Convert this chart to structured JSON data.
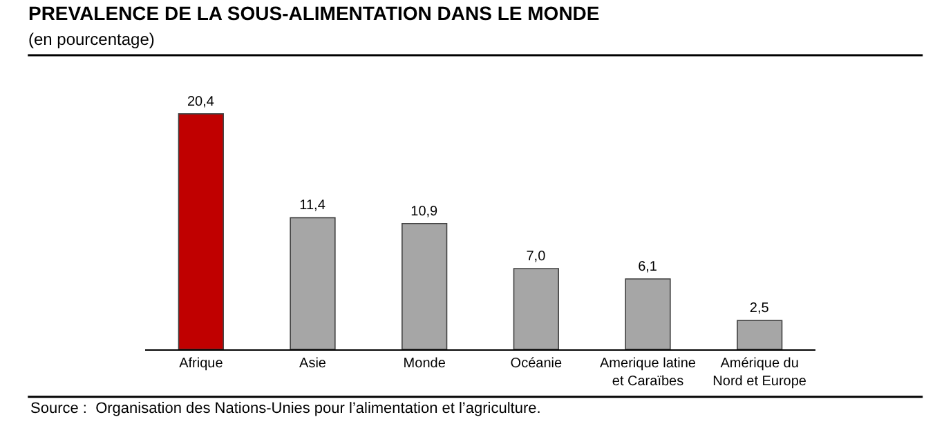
{
  "chart_data": {
    "type": "bar",
    "title": "PREVALENCE DE LA SOUS-ALIMENTATION DANS LE MONDE",
    "subtitle": "(en pourcentage)",
    "categories": [
      "Afrique",
      "Asie",
      "Monde",
      "Océanie",
      "Amerique latine\net Caraïbes",
      "Amérique du\nNord et Europe"
    ],
    "values": [
      20.4,
      11.4,
      10.9,
      7.0,
      6.1,
      2.5
    ],
    "value_labels": [
      "20,4",
      "11,4",
      "10,9",
      "7,0",
      "6,1",
      "2,5"
    ],
    "colors": [
      "#c00000",
      "#a6a6a6",
      "#a6a6a6",
      "#a6a6a6",
      "#a6a6a6",
      "#a6a6a6"
    ],
    "annotations": [
      "Source :  Organisation des Nations-Unies pour l’alimentation et l’agriculture."
    ]
  }
}
